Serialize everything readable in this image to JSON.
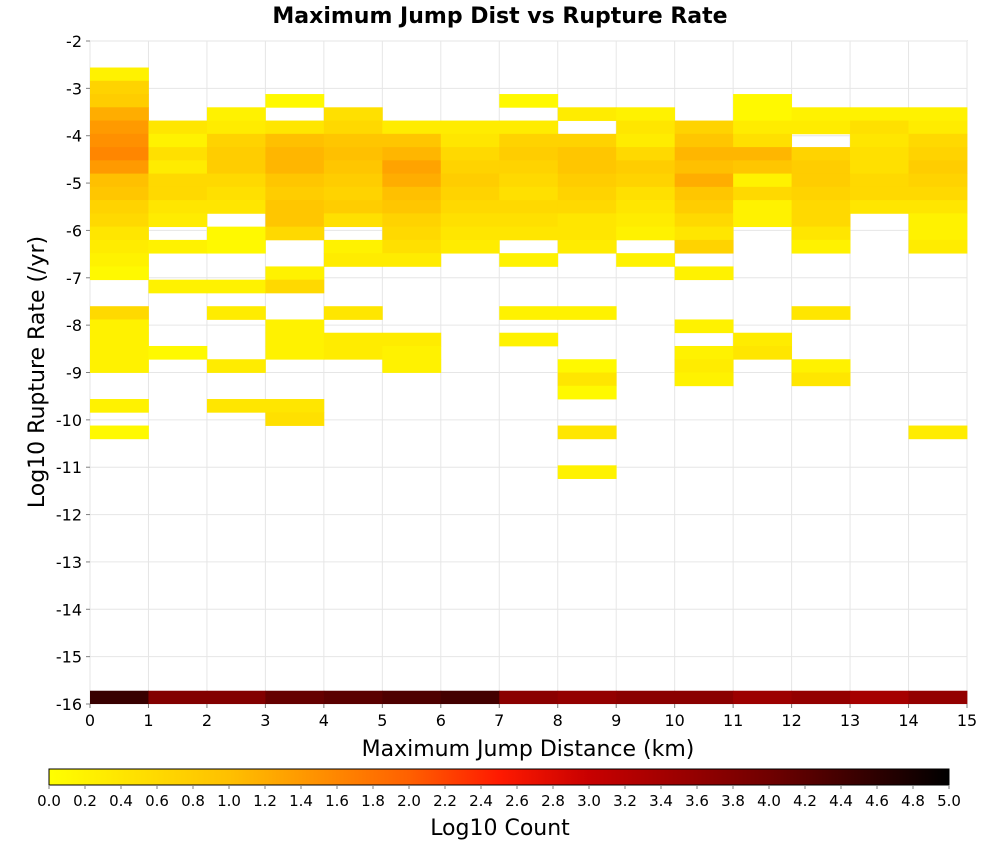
{
  "chart_data": {
    "type": "heatmap",
    "title": "Maximum Jump Dist vs Rupture Rate",
    "xlabel": "Maximum Jump Distance (km)",
    "ylabel": "Log10 Rupture Rate (/yr)",
    "colorbar_label": "Log10 Count",
    "xlim": [
      0,
      15
    ],
    "ylim": [
      -16,
      -2
    ],
    "clim": [
      0,
      5
    ],
    "grid": true,
    "colorbar_position": "bottom",
    "x_ticks": [
      "0",
      "1",
      "2",
      "3",
      "4",
      "5",
      "6",
      "7",
      "8",
      "9",
      "10",
      "11",
      "12",
      "13",
      "14",
      "15"
    ],
    "y_ticks": [
      "-2",
      "-3",
      "-4",
      "-5",
      "-6",
      "-7",
      "-8",
      "-9",
      "-10",
      "-11",
      "-12",
      "-13",
      "-14",
      "-15",
      "-16"
    ],
    "colorbar_ticks": [
      "0.0",
      "0.2",
      "0.4",
      "0.6",
      "0.8",
      "1.0",
      "1.2",
      "1.4",
      "1.6",
      "1.8",
      "2.0",
      "2.2",
      "2.4",
      "2.6",
      "2.8",
      "3.0",
      "3.2",
      "3.4",
      "3.6",
      "3.8",
      "4.0",
      "4.2",
      "4.4",
      "4.6",
      "4.8",
      "5.0"
    ],
    "x_bin_width": 1,
    "y_bin_height": 0.28,
    "cells_note": "each cell: [x bin index 0-14, y bin index from -16 (0 = bin starting at -16), log10 count]",
    "cells": [
      [
        0,
        47,
        0.2
      ],
      [
        0,
        46,
        0.7
      ],
      [
        0,
        45,
        0.8
      ],
      [
        0,
        44,
        1.2
      ],
      [
        0,
        43,
        1.4
      ],
      [
        0,
        42,
        1.5
      ],
      [
        0,
        41,
        1.6
      ],
      [
        0,
        40,
        1.4
      ],
      [
        0,
        39,
        1.0
      ],
      [
        0,
        38,
        0.9
      ],
      [
        0,
        37,
        0.7
      ],
      [
        0,
        36,
        0.6
      ],
      [
        0,
        35,
        0.4
      ],
      [
        0,
        34,
        0.3
      ],
      [
        0,
        33,
        0.2
      ],
      [
        0,
        32,
        0.1
      ],
      [
        0,
        29,
        0.6
      ],
      [
        0,
        28,
        0.2
      ],
      [
        0,
        27,
        0.2
      ],
      [
        0,
        26,
        0.2
      ],
      [
        0,
        25,
        0.2
      ],
      [
        0,
        22,
        0.2
      ],
      [
        0,
        20,
        0.1
      ],
      [
        1,
        43,
        0.4
      ],
      [
        1,
        42,
        0.2
      ],
      [
        1,
        41,
        0.5
      ],
      [
        1,
        40,
        0.3
      ],
      [
        1,
        39,
        0.6
      ],
      [
        1,
        38,
        0.6
      ],
      [
        1,
        37,
        0.4
      ],
      [
        1,
        36,
        0.3
      ],
      [
        1,
        34,
        0.2
      ],
      [
        1,
        31,
        0.2
      ],
      [
        1,
        26,
        0.1
      ],
      [
        2,
        44,
        0.2
      ],
      [
        2,
        43,
        0.3
      ],
      [
        2,
        42,
        0.7
      ],
      [
        2,
        41,
        0.8
      ],
      [
        2,
        40,
        0.8
      ],
      [
        2,
        39,
        0.6
      ],
      [
        2,
        38,
        0.5
      ],
      [
        2,
        37,
        0.4
      ],
      [
        2,
        35,
        0.1
      ],
      [
        2,
        34,
        0.1
      ],
      [
        2,
        31,
        0.2
      ],
      [
        2,
        29,
        0.3
      ],
      [
        2,
        25,
        0.3
      ],
      [
        2,
        22,
        0.4
      ],
      [
        3,
        45,
        0.1
      ],
      [
        3,
        43,
        0.4
      ],
      [
        3,
        42,
        1.0
      ],
      [
        3,
        41,
        1.1
      ],
      [
        3,
        40,
        1.1
      ],
      [
        3,
        39,
        0.9
      ],
      [
        3,
        38,
        0.8
      ],
      [
        3,
        37,
        0.9
      ],
      [
        3,
        36,
        0.9
      ],
      [
        3,
        35,
        0.6
      ],
      [
        3,
        32,
        0.2
      ],
      [
        3,
        31,
        0.6
      ],
      [
        3,
        28,
        0.2
      ],
      [
        3,
        27,
        0.2
      ],
      [
        3,
        26,
        0.2
      ],
      [
        3,
        22,
        0.4
      ],
      [
        3,
        21,
        0.5
      ],
      [
        4,
        44,
        0.5
      ],
      [
        4,
        43,
        0.6
      ],
      [
        4,
        42,
        0.9
      ],
      [
        4,
        41,
        1.0
      ],
      [
        4,
        40,
        0.9
      ],
      [
        4,
        39,
        0.8
      ],
      [
        4,
        38,
        0.7
      ],
      [
        4,
        37,
        0.8
      ],
      [
        4,
        36,
        0.5
      ],
      [
        4,
        34,
        0.2
      ],
      [
        4,
        33,
        0.3
      ],
      [
        4,
        29,
        0.4
      ],
      [
        4,
        27,
        0.3
      ],
      [
        4,
        26,
        0.3
      ],
      [
        5,
        43,
        0.3
      ],
      [
        5,
        42,
        0.9
      ],
      [
        5,
        41,
        1.1
      ],
      [
        5,
        40,
        1.3
      ],
      [
        5,
        39,
        1.2
      ],
      [
        5,
        38,
        1.0
      ],
      [
        5,
        37,
        0.9
      ],
      [
        5,
        36,
        0.7
      ],
      [
        5,
        35,
        0.6
      ],
      [
        5,
        34,
        0.5
      ],
      [
        5,
        33,
        0.3
      ],
      [
        5,
        27,
        0.3
      ],
      [
        5,
        26,
        0.2
      ],
      [
        5,
        25,
        0.2
      ],
      [
        6,
        43,
        0.3
      ],
      [
        6,
        42,
        0.4
      ],
      [
        6,
        41,
        0.6
      ],
      [
        6,
        40,
        0.7
      ],
      [
        6,
        39,
        0.8
      ],
      [
        6,
        38,
        0.7
      ],
      [
        6,
        37,
        0.6
      ],
      [
        6,
        36,
        0.5
      ],
      [
        6,
        35,
        0.4
      ],
      [
        6,
        34,
        0.3
      ],
      [
        7,
        45,
        0.1
      ],
      [
        7,
        43,
        0.3
      ],
      [
        7,
        42,
        0.7
      ],
      [
        7,
        41,
        0.8
      ],
      [
        7,
        40,
        0.7
      ],
      [
        7,
        39,
        0.6
      ],
      [
        7,
        38,
        0.5
      ],
      [
        7,
        37,
        0.6
      ],
      [
        7,
        36,
        0.5
      ],
      [
        7,
        35,
        0.4
      ],
      [
        7,
        33,
        0.2
      ],
      [
        7,
        29,
        0.2
      ],
      [
        7,
        27,
        0.2
      ],
      [
        8,
        44,
        0.3
      ],
      [
        8,
        42,
        0.7
      ],
      [
        8,
        41,
        0.9
      ],
      [
        8,
        40,
        0.9
      ],
      [
        8,
        39,
        0.8
      ],
      [
        8,
        38,
        0.7
      ],
      [
        8,
        37,
        0.6
      ],
      [
        8,
        36,
        0.4
      ],
      [
        8,
        35,
        0.4
      ],
      [
        8,
        34,
        0.3
      ],
      [
        8,
        29,
        0.2
      ],
      [
        8,
        25,
        0.1
      ],
      [
        8,
        24,
        0.4
      ],
      [
        8,
        23,
        0.1
      ],
      [
        8,
        20,
        0.4
      ],
      [
        8,
        17,
        0.2
      ],
      [
        9,
        44,
        0.2
      ],
      [
        9,
        43,
        0.4
      ],
      [
        9,
        42,
        0.3
      ],
      [
        9,
        41,
        0.6
      ],
      [
        9,
        40,
        0.8
      ],
      [
        9,
        39,
        0.7
      ],
      [
        9,
        38,
        0.5
      ],
      [
        9,
        37,
        0.4
      ],
      [
        9,
        36,
        0.3
      ],
      [
        9,
        35,
        0.2
      ],
      [
        9,
        33,
        0.2
      ],
      [
        10,
        43,
        0.7
      ],
      [
        10,
        42,
        0.9
      ],
      [
        10,
        41,
        1.1
      ],
      [
        10,
        40,
        1.0
      ],
      [
        10,
        39,
        1.2
      ],
      [
        10,
        38,
        0.9
      ],
      [
        10,
        37,
        0.8
      ],
      [
        10,
        36,
        0.6
      ],
      [
        10,
        35,
        0.4
      ],
      [
        10,
        34,
        0.7
      ],
      [
        10,
        32,
        0.2
      ],
      [
        10,
        28,
        0.2
      ],
      [
        10,
        26,
        0.2
      ],
      [
        10,
        25,
        0.3
      ],
      [
        10,
        24,
        0.2
      ],
      [
        11,
        45,
        0.1
      ],
      [
        11,
        44,
        0.1
      ],
      [
        11,
        43,
        0.3
      ],
      [
        11,
        42,
        0.5
      ],
      [
        11,
        41,
        1.1
      ],
      [
        11,
        40,
        0.9
      ],
      [
        11,
        39,
        0.2
      ],
      [
        11,
        38,
        0.6
      ],
      [
        11,
        37,
        0.2
      ],
      [
        11,
        36,
        0.2
      ],
      [
        11,
        27,
        0.3
      ],
      [
        11,
        26,
        0.4
      ],
      [
        12,
        44,
        0.2
      ],
      [
        12,
        43,
        0.3
      ],
      [
        12,
        41,
        0.7
      ],
      [
        12,
        40,
        0.8
      ],
      [
        12,
        39,
        0.8
      ],
      [
        12,
        38,
        0.7
      ],
      [
        12,
        37,
        0.6
      ],
      [
        12,
        36,
        0.6
      ],
      [
        12,
        35,
        0.4
      ],
      [
        12,
        34,
        0.2
      ],
      [
        12,
        29,
        0.4
      ],
      [
        12,
        25,
        0.2
      ],
      [
        12,
        24,
        0.4
      ],
      [
        13,
        44,
        0.2
      ],
      [
        13,
        43,
        0.5
      ],
      [
        13,
        42,
        0.4
      ],
      [
        13,
        41,
        0.5
      ],
      [
        13,
        40,
        0.5
      ],
      [
        13,
        39,
        0.6
      ],
      [
        13,
        38,
        0.6
      ],
      [
        13,
        37,
        0.4
      ],
      [
        14,
        44,
        0.2
      ],
      [
        14,
        43,
        0.3
      ],
      [
        14,
        42,
        0.6
      ],
      [
        14,
        41,
        0.7
      ],
      [
        14,
        40,
        0.8
      ],
      [
        14,
        39,
        0.7
      ],
      [
        14,
        38,
        0.6
      ],
      [
        14,
        37,
        0.4
      ],
      [
        14,
        36,
        0.2
      ],
      [
        14,
        35,
        0.2
      ],
      [
        14,
        34,
        0.3
      ],
      [
        14,
        20,
        0.3
      ]
    ],
    "bottom_row_note": "log10 count for each x bin in the row at -16",
    "bottom_row": [
      4.5,
      3.8,
      3.8,
      4.1,
      4.2,
      4.3,
      4.4,
      3.7,
      3.6,
      3.7,
      3.7,
      3.5,
      3.6,
      3.4,
      3.6
    ]
  }
}
